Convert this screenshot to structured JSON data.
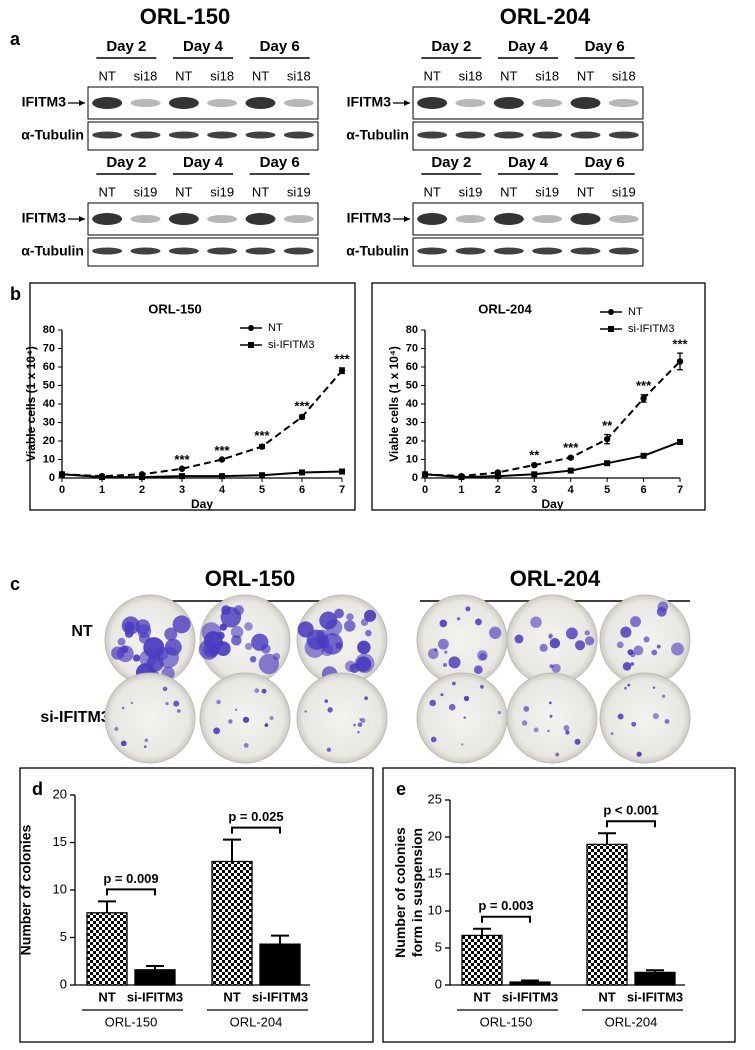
{
  "panel_labels": [
    "a",
    "b",
    "c",
    "d",
    "e"
  ],
  "blots": {
    "titles": [
      "ORL-150",
      "ORL-204"
    ],
    "panels": [
      {
        "days": [
          "Day 2",
          "Day 4",
          "Day 6"
        ],
        "lanes": [
          "NT",
          "si18",
          "NT",
          "si18",
          "NT",
          "si18"
        ],
        "rows": [
          "IFITM3",
          "α-Tubulin"
        ]
      },
      {
        "days": [
          "Day 2",
          "Day 4",
          "Day 6"
        ],
        "lanes": [
          "NT",
          "si18",
          "NT",
          "si18",
          "NT",
          "si18"
        ],
        "rows": [
          "IFITM3",
          "α-Tubulin"
        ]
      },
      {
        "days": [
          "Day 2",
          "Day 4",
          "Day 6"
        ],
        "lanes": [
          "NT",
          "si19",
          "NT",
          "si19",
          "NT",
          "si19"
        ],
        "rows": [
          "IFITM3",
          "α-Tubulin"
        ]
      },
      {
        "days": [
          "Day 2",
          "Day 4",
          "Day 6"
        ],
        "lanes": [
          "NT",
          "si19",
          "NT",
          "si19",
          "NT",
          "si19"
        ],
        "rows": [
          "IFITM3",
          "α-Tubulin"
        ]
      }
    ]
  },
  "colonies": {
    "groups": [
      "ORL-150",
      "ORL-204"
    ],
    "rows": [
      "NT",
      "si-IFITM3"
    ]
  },
  "chart_data": [
    {
      "type": "line",
      "title": "ORL-150",
      "x_label": "Day",
      "y_label": "Viable cells (1 x 10⁴)",
      "x": [
        0,
        1,
        2,
        3,
        4,
        5,
        6,
        7
      ],
      "xlim": [
        0,
        7
      ],
      "xticks": [
        0,
        1,
        2,
        3,
        4,
        5,
        6,
        7
      ],
      "ylim": [
        0,
        80
      ],
      "yticks": [
        0,
        10,
        20,
        30,
        40,
        50,
        60,
        70,
        80
      ],
      "series": [
        {
          "name": "NT",
          "color": "#000000",
          "marker": "circle",
          "dashed": true,
          "values": [
            2,
            1,
            2,
            5,
            10,
            17,
            33,
            58
          ],
          "errors": [
            0,
            0,
            0,
            0,
            0,
            1,
            1,
            1.5
          ]
        },
        {
          "name": "si-IFITM3",
          "color": "#000000",
          "marker": "square",
          "dashed": false,
          "values": [
            2,
            0.5,
            0.5,
            1,
            1,
            1.5,
            3,
            3.5
          ],
          "errors": [
            0,
            0,
            0,
            0,
            0,
            0,
            0,
            0
          ]
        }
      ],
      "significance": [
        null,
        null,
        null,
        "***",
        "***",
        "***",
        "***",
        "***"
      ]
    },
    {
      "type": "line",
      "title": "ORL-204",
      "x_label": "Day",
      "y_label": "Viable cells (1 x 10⁴)",
      "x": [
        0,
        1,
        2,
        3,
        4,
        5,
        6,
        7
      ],
      "xlim": [
        0,
        7
      ],
      "xticks": [
        0,
        1,
        2,
        3,
        4,
        5,
        6,
        7
      ],
      "ylim": [
        0,
        80
      ],
      "yticks": [
        0,
        10,
        20,
        30,
        40,
        50,
        60,
        70,
        80
      ],
      "series": [
        {
          "name": "NT",
          "color": "#000000",
          "marker": "circle",
          "dashed": true,
          "values": [
            2,
            1,
            3,
            7,
            11,
            21,
            43,
            63
          ],
          "errors": [
            0,
            0,
            0,
            0.5,
            0.5,
            2.5,
            2,
            4.5
          ]
        },
        {
          "name": "si-IFITM3",
          "color": "#000000",
          "marker": "square",
          "dashed": false,
          "values": [
            2,
            0.5,
            1,
            2,
            4,
            8,
            12,
            19.5
          ],
          "errors": [
            0,
            0,
            0,
            0,
            0,
            0,
            0,
            0
          ]
        }
      ],
      "significance": [
        null,
        null,
        null,
        "**",
        "***",
        "**",
        "***",
        "***"
      ]
    },
    {
      "type": "bar",
      "y_label": "Number of colonies",
      "categories": [
        "NT",
        "si-IFITM3",
        "NT",
        "si-IFITM3"
      ],
      "groups": [
        "ORL-150",
        "ORL-204"
      ],
      "values": [
        7.6,
        1.6,
        13,
        4.3
      ],
      "errors": [
        1.2,
        0.4,
        2.3,
        0.9
      ],
      "styles": [
        "checker",
        "solid",
        "checker",
        "solid"
      ],
      "p_values": [
        "p = 0.009",
        "p = 0.025"
      ],
      "ylim": [
        0,
        20
      ],
      "yticks": [
        0,
        5,
        10,
        15,
        20
      ]
    },
    {
      "type": "bar",
      "y_label": [
        "Number of colonies",
        "form in suspension"
      ],
      "categories": [
        "NT",
        "si-IFITM3",
        "NT",
        "si-IFITM3"
      ],
      "groups": [
        "ORL-150",
        "ORL-204"
      ],
      "values": [
        6.7,
        0.4,
        19,
        1.7
      ],
      "errors": [
        0.9,
        0.2,
        1.5,
        0.3
      ],
      "styles": [
        "checker",
        "solid",
        "checker",
        "solid"
      ],
      "p_values": [
        "p = 0.003",
        "p < 0.001"
      ],
      "ylim": [
        0,
        25
      ],
      "yticks": [
        0,
        5,
        10,
        15,
        20,
        25
      ]
    }
  ]
}
